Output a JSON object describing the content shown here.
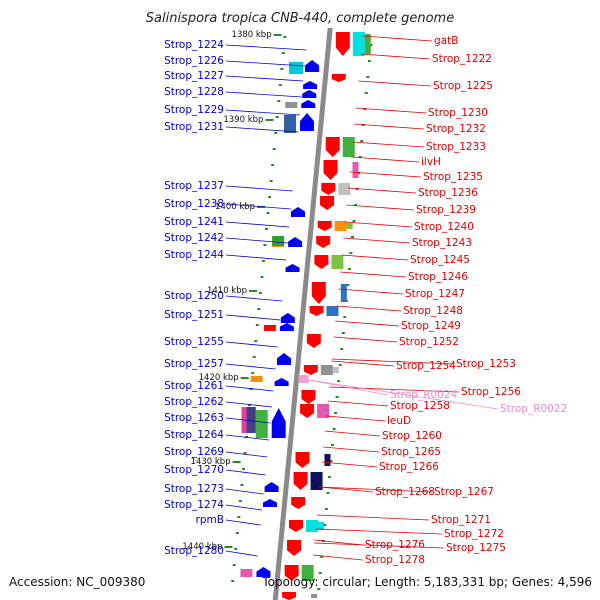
{
  "title": "Salinispora tropica CNB-440, complete genome",
  "footer": {
    "accession": "Accession: NC_009380",
    "topology": "Topology: circular; Length: 5,183,331 bp; Genes: 4,596"
  },
  "colors": {
    "left_label": "#0000cc",
    "right_label": "#e00000",
    "rna_label": "#f08cc8",
    "backbone": "#8a8a8a",
    "tick": "#2a8a2a"
  },
  "ruler": [
    {
      "label": "1380 kbp"
    },
    {
      "label": "1390 kbp"
    },
    {
      "label": "1400 kbp"
    },
    {
      "label": "1410 kbp"
    },
    {
      "label": "1420 kbp"
    },
    {
      "label": "1430 kbp"
    },
    {
      "label": "1440 kbp"
    }
  ],
  "left_labels": [
    "Strop_1224",
    "Strop_1226",
    "Strop_1227",
    "Strop_1228",
    "Strop_1229",
    "Strop_1231",
    "Strop_1237",
    "Strop_1238",
    "Strop_1241",
    "Strop_1242",
    "Strop_1244",
    "Strop_1250",
    "Strop_1251",
    "Strop_1255",
    "Strop_1257",
    "Strop_1261",
    "Strop_1262",
    "Strop_1263",
    "Strop_1264",
    "Strop_1269",
    "Strop_1270",
    "Strop_1273",
    "Strop_1274",
    "rpmB",
    "Strop_1280"
  ],
  "right_labels": [
    "gatB",
    "Strop_1222",
    "Strop_1225",
    "Strop_1230",
    "Strop_1232",
    "Strop_1233",
    "ilvH",
    "Strop_1235",
    "Strop_1236",
    "Strop_1239",
    "Strop_1240",
    "Strop_1243",
    "Strop_1245",
    "Strop_1246",
    "Strop_1247",
    "Strop_1248",
    "Strop_1249",
    "Strop_1252",
    "Strop_1254",
    "Strop_1253",
    "Strop_1256",
    "Strop_1258",
    "leuD",
    "Strop_1260",
    "Strop_1265",
    "Strop_1266",
    "Strop_1268",
    "Strop_1267",
    "Strop_1271",
    "Strop_1272",
    "Strop_1275",
    "Strop_1276",
    "Strop_1278"
  ],
  "rna_labels": [
    "Strop_R0024",
    "Strop_R0022"
  ]
}
